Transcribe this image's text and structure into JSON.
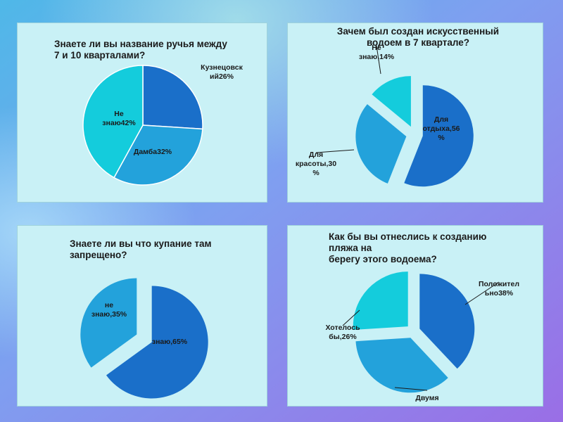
{
  "chart_data": [
    {
      "type": "pie",
      "title": "Знаете ли вы название ручья между\n7 и 10 кварталами?",
      "categories": [
        "Кузнецовский",
        "Дамба",
        "Не знаю"
      ],
      "values": [
        26,
        32,
        42
      ],
      "colors": [
        "#1a6fc9",
        "#23a2db",
        "#14ccdc"
      ],
      "labels": [
        [
          "Кузнецовск",
          "ий26%"
        ],
        [
          "Дамба32%"
        ],
        [
          "Не",
          "знаю42%"
        ]
      ],
      "exploded": false
    },
    {
      "type": "pie",
      "title": "Зачем был создан искусственный\nводоем в 7 квартале?",
      "categories": [
        "Для отдыха",
        "Для красоты",
        "Не знаю"
      ],
      "values": [
        56,
        30,
        14
      ],
      "colors": [
        "#1a6fc9",
        "#23a2db",
        "#14ccdc"
      ],
      "labels": [
        [
          "Для",
          "отдыха,56",
          "%"
        ],
        [
          "Для",
          "красоты,30",
          "%"
        ],
        [
          "Не",
          "знаю,14%"
        ]
      ],
      "exploded": true
    },
    {
      "type": "pie",
      "title": "Знаете ли вы что купание там\nзапрещено?",
      "categories": [
        "знаю",
        "не знаю"
      ],
      "values": [
        65,
        35
      ],
      "colors": [
        "#1a6fc9",
        "#23a2db"
      ],
      "labels": [
        [
          "знаю,65%"
        ],
        [
          "не",
          "знаю,35%"
        ]
      ],
      "exploded": true
    },
    {
      "type": "pie",
      "title": "Как бы вы отнеслись к созданию\nпляжа на\n берегу этого водоема?",
      "categories": [
        "Положительно",
        "Двумя",
        "Хотелось бы"
      ],
      "values": [
        38,
        36,
        26
      ],
      "colors": [
        "#1a6fc9",
        "#23a2db",
        "#14ccdc"
      ],
      "labels": [
        [
          "Положител",
          "ьно38%"
        ],
        [
          "Двумя"
        ],
        [
          "Хотелось",
          "бы,26%"
        ]
      ],
      "exploded": true
    }
  ]
}
